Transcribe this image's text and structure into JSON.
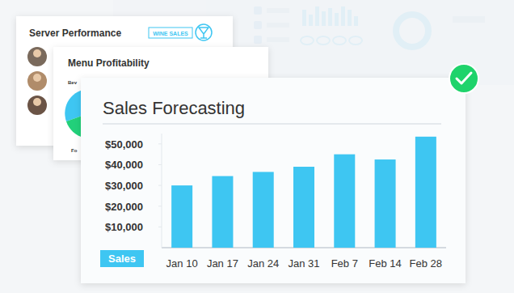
{
  "chart_data": {
    "type": "bar",
    "title": "Sales Forecasting",
    "categories": [
      "Jan 10",
      "Jan 17",
      "Jan 24",
      "Jan 31",
      "Feb 7",
      "Feb 14",
      "Feb 28"
    ],
    "series": [
      {
        "name": "Sales",
        "color": "#3ec6f2",
        "values": [
          30000,
          34500,
          36500,
          39000,
          45000,
          42500,
          53500
        ]
      }
    ],
    "ylim": [
      0,
      55000
    ],
    "yticks": [
      {
        "value": 10000,
        "label": "$10,000"
      },
      {
        "value": 20000,
        "label": "$20,000"
      },
      {
        "value": 30000,
        "label": "$30,000"
      },
      {
        "value": 40000,
        "label": "$40,000"
      },
      {
        "value": 50000,
        "label": "$50,000"
      }
    ],
    "grid": false,
    "legend": "bottom-left"
  },
  "cards": [
    {
      "title": "Server Performance",
      "badge": "WINE SALES"
    },
    {
      "title": "Menu Profitability",
      "labels": [
        "Bev",
        "Fo"
      ]
    }
  ]
}
